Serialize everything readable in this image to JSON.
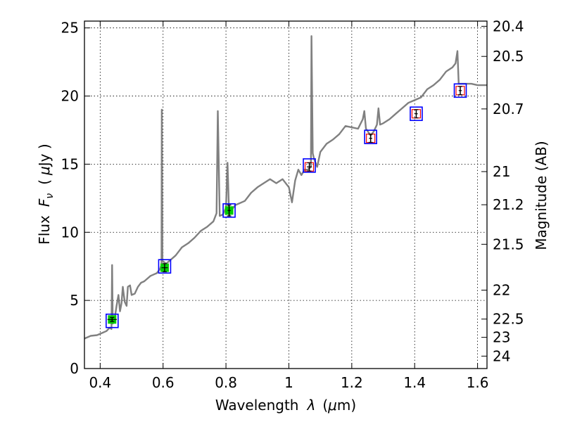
{
  "chart_data": {
    "type": "line",
    "title": "",
    "xlabel_prefix": "Wavelength",
    "xlabel_symbol": "λ",
    "xlabel_unit_open": "(",
    "xlabel_unit_mu": "μ",
    "xlabel_unit_rest": "m)",
    "ylabel_prefix": "Flux",
    "ylabel_symbol": "F",
    "ylabel_sub": "ν",
    "ylabel_unit_open": "(",
    "ylabel_unit_mu": "μ",
    "ylabel_unit_rest": "Jy )",
    "ylabel_right": "Magnitude (AB)",
    "xlim": [
      0.35,
      1.63
    ],
    "ylim": [
      0,
      25.5
    ],
    "grid": true,
    "x_ticks": [
      0.4,
      0.6,
      0.8,
      1.0,
      1.2,
      1.4,
      1.6
    ],
    "x_tick_labels": [
      "0.4",
      "0.6",
      "0.8",
      "1",
      "1.2",
      "1.4",
      "1.6"
    ],
    "y_ticks": [
      0,
      5,
      10,
      15,
      20,
      25
    ],
    "y_tick_labels": [
      "0",
      "5",
      "10",
      "15",
      "20",
      "25"
    ],
    "right_ticks": [
      "20.4",
      "20.5",
      "20.7",
      "21",
      "21.2",
      "21.5",
      "22",
      "22.5",
      "23",
      "24"
    ],
    "colors": {
      "spectrum": "#808080",
      "model_box": "#0000ff",
      "observed_box": "#ff0000",
      "observed_fill": "#00cc00",
      "errorbar": "#000000"
    },
    "series": [
      {
        "role": "model spectrum",
        "points": [
          [
            0.35,
            2.2
          ],
          [
            0.37,
            2.4
          ],
          [
            0.39,
            2.45
          ],
          [
            0.405,
            2.6
          ],
          [
            0.42,
            2.75
          ],
          [
            0.43,
            3.0
          ],
          [
            0.436,
            2.9
          ],
          [
            0.438,
            7.6
          ],
          [
            0.44,
            3.3
          ],
          [
            0.445,
            3.5
          ],
          [
            0.452,
            4.6
          ],
          [
            0.458,
            5.4
          ],
          [
            0.463,
            4.2
          ],
          [
            0.468,
            4.8
          ],
          [
            0.472,
            6.0
          ],
          [
            0.478,
            4.9
          ],
          [
            0.484,
            4.6
          ],
          [
            0.488,
            6.0
          ],
          [
            0.495,
            6.1
          ],
          [
            0.5,
            5.4
          ],
          [
            0.51,
            5.5
          ],
          [
            0.52,
            6.0
          ],
          [
            0.53,
            6.3
          ],
          [
            0.54,
            6.4
          ],
          [
            0.55,
            6.6
          ],
          [
            0.56,
            6.8
          ],
          [
            0.57,
            6.9
          ],
          [
            0.58,
            7.0
          ],
          [
            0.59,
            7.3
          ],
          [
            0.595,
            7.6
          ],
          [
            0.596,
            19.0
          ],
          [
            0.598,
            7.9
          ],
          [
            0.61,
            7.7
          ],
          [
            0.62,
            7.9
          ],
          [
            0.64,
            8.3
          ],
          [
            0.66,
            8.9
          ],
          [
            0.68,
            9.2
          ],
          [
            0.7,
            9.6
          ],
          [
            0.72,
            10.1
          ],
          [
            0.74,
            10.4
          ],
          [
            0.76,
            10.8
          ],
          [
            0.77,
            11.4
          ],
          [
            0.774,
            18.9
          ],
          [
            0.78,
            11.2
          ],
          [
            0.79,
            11.3
          ],
          [
            0.8,
            11.8
          ],
          [
            0.805,
            15.1
          ],
          [
            0.81,
            11.2
          ],
          [
            0.82,
            11.7
          ],
          [
            0.83,
            12.0
          ],
          [
            0.84,
            12.1
          ],
          [
            0.85,
            12.2
          ],
          [
            0.86,
            12.3
          ],
          [
            0.87,
            12.6
          ],
          [
            0.88,
            12.9
          ],
          [
            0.9,
            13.3
          ],
          [
            0.92,
            13.6
          ],
          [
            0.94,
            13.9
          ],
          [
            0.96,
            13.6
          ],
          [
            0.98,
            13.9
          ],
          [
            1.0,
            13.3
          ],
          [
            1.01,
            12.2
          ],
          [
            1.02,
            13.8
          ],
          [
            1.03,
            14.6
          ],
          [
            1.04,
            14.2
          ],
          [
            1.05,
            14.6
          ],
          [
            1.06,
            14.6
          ],
          [
            1.07,
            14.8
          ],
          [
            1.072,
            24.4
          ],
          [
            1.076,
            15.8
          ],
          [
            1.08,
            15.4
          ],
          [
            1.09,
            14.8
          ],
          [
            1.1,
            15.9
          ],
          [
            1.12,
            16.5
          ],
          [
            1.14,
            16.8
          ],
          [
            1.16,
            17.2
          ],
          [
            1.18,
            17.8
          ],
          [
            1.2,
            17.7
          ],
          [
            1.22,
            17.6
          ],
          [
            1.235,
            18.3
          ],
          [
            1.24,
            18.9
          ],
          [
            1.245,
            17.6
          ],
          [
            1.26,
            17.1
          ],
          [
            1.27,
            17.4
          ],
          [
            1.28,
            17.9
          ],
          [
            1.285,
            19.1
          ],
          [
            1.29,
            17.9
          ],
          [
            1.3,
            18.0
          ],
          [
            1.32,
            18.3
          ],
          [
            1.34,
            18.7
          ],
          [
            1.36,
            19.1
          ],
          [
            1.38,
            19.5
          ],
          [
            1.4,
            19.7
          ],
          [
            1.42,
            19.9
          ],
          [
            1.44,
            20.5
          ],
          [
            1.46,
            20.8
          ],
          [
            1.48,
            21.2
          ],
          [
            1.5,
            21.8
          ],
          [
            1.52,
            22.1
          ],
          [
            1.53,
            22.4
          ],
          [
            1.536,
            23.3
          ],
          [
            1.54,
            20.9
          ],
          [
            1.56,
            20.9
          ],
          [
            1.58,
            20.9
          ],
          [
            1.6,
            20.8
          ],
          [
            1.63,
            20.8
          ]
        ]
      },
      {
        "role": "model photometry",
        "points": [
          [
            0.438,
            3.5
          ],
          [
            0.605,
            7.5
          ],
          [
            0.81,
            11.6
          ],
          [
            1.065,
            14.9
          ],
          [
            1.26,
            17.0
          ],
          [
            1.405,
            18.7
          ],
          [
            1.545,
            20.4
          ]
        ]
      },
      {
        "role": "observed photometry",
        "points": [
          [
            0.438,
            3.6
          ],
          [
            0.605,
            7.4
          ],
          [
            0.81,
            11.6
          ],
          [
            1.065,
            14.8
          ],
          [
            1.26,
            16.9
          ],
          [
            1.405,
            18.7
          ],
          [
            1.545,
            20.4
          ]
        ],
        "yerr": [
          0.15,
          0.3,
          0.4,
          0.3,
          0.3,
          0.3,
          0.3
        ],
        "xerr": [
          0.015,
          0.01,
          0.005,
          0.008,
          0.005,
          0.005,
          0.005
        ],
        "filled": [
          true,
          true,
          true,
          false,
          false,
          false,
          false
        ]
      }
    ]
  }
}
